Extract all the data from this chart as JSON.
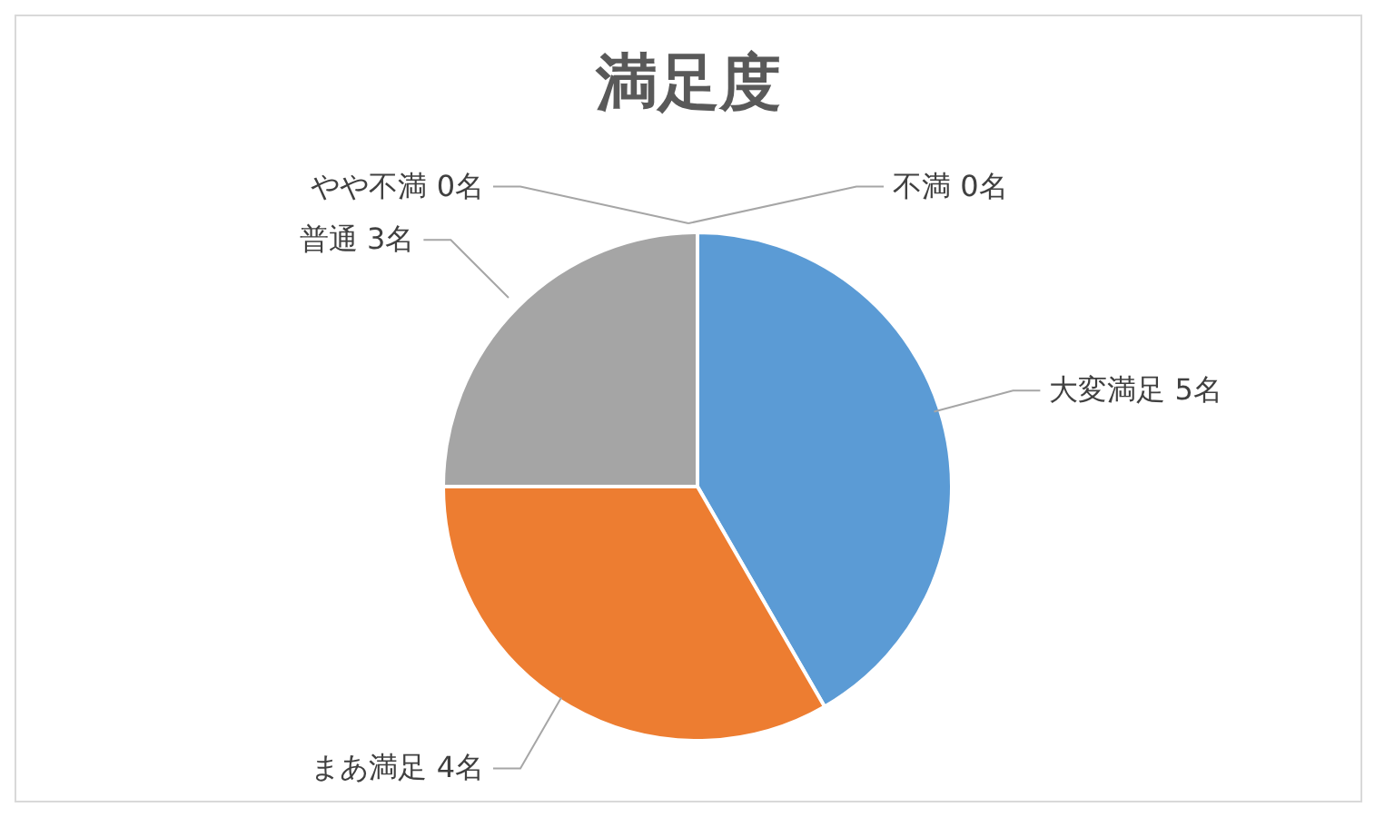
{
  "chart_data": {
    "type": "pie",
    "title": "満足度",
    "categories": [
      "大変満足",
      "まあ満足",
      "普通",
      "やや不満",
      "不満"
    ],
    "values": [
      5,
      4,
      3,
      0,
      0
    ],
    "value_labels": [
      "5名",
      "4名",
      "3名",
      "0名",
      "0名"
    ],
    "colors": [
      "#5b9bd5",
      "#ed7d31",
      "#a5a5a5",
      "#ffc000",
      "#4472c4"
    ],
    "legend": false
  }
}
